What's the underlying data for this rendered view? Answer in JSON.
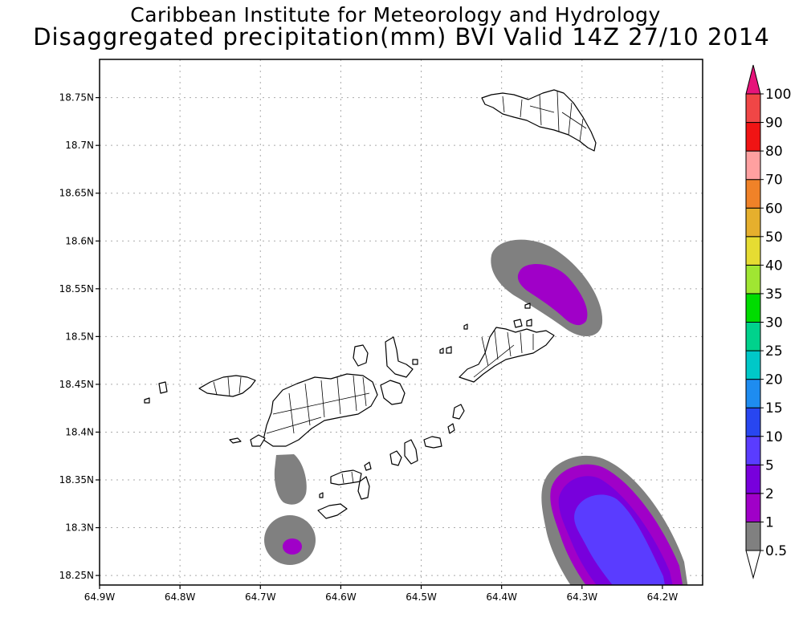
{
  "title": {
    "line1": "Caribbean Institute for Meteorology and Hydrology",
    "line2": "Disaggregated precipitation(mm) BVI Valid 14Z 27/10 2014"
  },
  "map": {
    "lon_range": [
      -64.9,
      -64.15
    ],
    "lat_range": [
      18.24,
      18.79
    ],
    "x_ticks": [
      {
        "value": -64.9,
        "label": "64.9W"
      },
      {
        "value": -64.8,
        "label": "64.8W"
      },
      {
        "value": -64.7,
        "label": "64.7W"
      },
      {
        "value": -64.6,
        "label": "64.6W"
      },
      {
        "value": -64.5,
        "label": "64.5W"
      },
      {
        "value": -64.4,
        "label": "64.4W"
      },
      {
        "value": -64.3,
        "label": "64.3W"
      },
      {
        "value": -64.2,
        "label": "64.2W"
      }
    ],
    "y_ticks": [
      {
        "value": 18.25,
        "label": "18.25N"
      },
      {
        "value": 18.3,
        "label": "18.3N"
      },
      {
        "value": 18.35,
        "label": "18.35N"
      },
      {
        "value": 18.4,
        "label": "18.4N"
      },
      {
        "value": 18.45,
        "label": "18.45N"
      },
      {
        "value": 18.5,
        "label": "18.5N"
      },
      {
        "value": 18.55,
        "label": "18.55N"
      },
      {
        "value": 18.6,
        "label": "18.6N"
      },
      {
        "value": 18.65,
        "label": "18.65N"
      },
      {
        "value": 18.7,
        "label": "18.7N"
      },
      {
        "value": 18.75,
        "label": "18.75N"
      }
    ],
    "grid": true
  },
  "colorbar": {
    "levels": [
      {
        "label": "0.5",
        "color": "#ffffff"
      },
      {
        "label": "1",
        "color": "#808080"
      },
      {
        "label": "2",
        "color": "#a000c8"
      },
      {
        "label": "5",
        "color": "#7800dc"
      },
      {
        "label": "10",
        "color": "#5a3cff"
      },
      {
        "label": "15",
        "color": "#2846f0"
      },
      {
        "label": "20",
        "color": "#1e8cf0"
      },
      {
        "label": "25",
        "color": "#00c8c8"
      },
      {
        "label": "30",
        "color": "#00d28c"
      },
      {
        "label": "35",
        "color": "#00dc00"
      },
      {
        "label": "40",
        "color": "#a0e632"
      },
      {
        "label": "50",
        "color": "#e6dc32"
      },
      {
        "label": "60",
        "color": "#e6af2d"
      },
      {
        "label": "70",
        "color": "#f08228"
      },
      {
        "label": "80",
        "color": "#ffa0a0"
      },
      {
        "label": "90",
        "color": "#f01414"
      },
      {
        "label": "100",
        "color": "#f04646"
      }
    ],
    "top_color": "#e6147a"
  },
  "precip_areas": [
    {
      "name": "north-east",
      "level1": "#808080",
      "level2": "#a000c8"
    },
    {
      "name": "south-east",
      "level1": "#808080",
      "level2": "#a000c8",
      "level3": "#7800dc",
      "level4": "#5a3cff"
    },
    {
      "name": "south-west-upper",
      "level1": "#808080"
    },
    {
      "name": "south-west-lower",
      "level1": "#808080",
      "level2": "#a000c8"
    }
  ]
}
